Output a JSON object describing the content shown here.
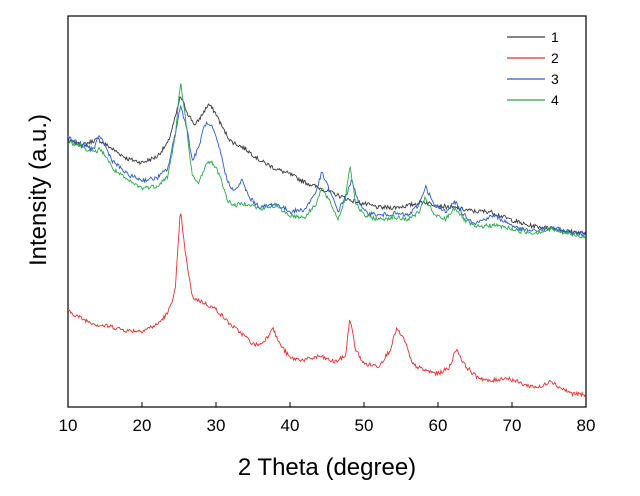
{
  "chart_data": {
    "type": "line",
    "xlabel": "2 Theta (degree)",
    "ylabel": "Intensity (a.u.)",
    "xlim": [
      10,
      80
    ],
    "ylim": [
      0,
      100
    ],
    "x_ticks": [
      10,
      20,
      30,
      40,
      50,
      60,
      70,
      80
    ],
    "y_ticks_shown": false,
    "grid": false,
    "legend_position": "top-right",
    "series": [
      {
        "name": "1",
        "color": "#3a3a3a",
        "points": [
          [
            10,
            68
          ],
          [
            12,
            67
          ],
          [
            14,
            68.5
          ],
          [
            16,
            66
          ],
          [
            18,
            63.5
          ],
          [
            20,
            62.5
          ],
          [
            22,
            64
          ],
          [
            23.5,
            67.5
          ],
          [
            24.5,
            74
          ],
          [
            25.2,
            79.5
          ],
          [
            26.2,
            75
          ],
          [
            27.2,
            72
          ],
          [
            28.2,
            75
          ],
          [
            29,
            77.5
          ],
          [
            30,
            75
          ],
          [
            31,
            71
          ],
          [
            32,
            68
          ],
          [
            34,
            66
          ],
          [
            35,
            64.5
          ],
          [
            36,
            63
          ],
          [
            38,
            61
          ],
          [
            40,
            59.5
          ],
          [
            42,
            57.5
          ],
          [
            44,
            56
          ],
          [
            46,
            54.5
          ],
          [
            48,
            53
          ],
          [
            50,
            52
          ],
          [
            52,
            51
          ],
          [
            54,
            51
          ],
          [
            56,
            51.5
          ],
          [
            58,
            52.5
          ],
          [
            60,
            51.5
          ],
          [
            62,
            51
          ],
          [
            63.5,
            50.5
          ],
          [
            65,
            50
          ],
          [
            67,
            50
          ],
          [
            69,
            48.5
          ],
          [
            72,
            46.5
          ],
          [
            74,
            46
          ],
          [
            76,
            45.5
          ],
          [
            78,
            44.8
          ],
          [
            80,
            44.5
          ]
        ]
      },
      {
        "name": "2",
        "color": "#e8312f",
        "points": [
          [
            10,
            24.5
          ],
          [
            12,
            22.5
          ],
          [
            14,
            21
          ],
          [
            16,
            20.5
          ],
          [
            18,
            19.5
          ],
          [
            20,
            19.5
          ],
          [
            22,
            21
          ],
          [
            23.5,
            24
          ],
          [
            24.5,
            30
          ],
          [
            25.2,
            50.5
          ],
          [
            25.8,
            40
          ],
          [
            26.8,
            28
          ],
          [
            28,
            27
          ],
          [
            30,
            25
          ],
          [
            32,
            21
          ],
          [
            34,
            18
          ],
          [
            35,
            16
          ],
          [
            36,
            16
          ],
          [
            37,
            18
          ],
          [
            37.6,
            20.5
          ],
          [
            38.5,
            16.5
          ],
          [
            40,
            12.5
          ],
          [
            42,
            12
          ],
          [
            44,
            13
          ],
          [
            46,
            11.5
          ],
          [
            47.5,
            13
          ],
          [
            48.1,
            23
          ],
          [
            48.8,
            15
          ],
          [
            50,
            11
          ],
          [
            52,
            10.5
          ],
          [
            53.5,
            14.5
          ],
          [
            54.4,
            20
          ],
          [
            55.5,
            17
          ],
          [
            56.5,
            11
          ],
          [
            58,
            9.5
          ],
          [
            60,
            8.5
          ],
          [
            61.5,
            10
          ],
          [
            62.5,
            15
          ],
          [
            63.5,
            11
          ],
          [
            65,
            8
          ],
          [
            67,
            6.5
          ],
          [
            69,
            7.5
          ],
          [
            70,
            7
          ],
          [
            72,
            5.5
          ],
          [
            74,
            5
          ],
          [
            75.2,
            7
          ],
          [
            76,
            5.5
          ],
          [
            78,
            3.5
          ],
          [
            80,
            3
          ]
        ]
      },
      {
        "name": "3",
        "color": "#2b5ccf",
        "points": [
          [
            10,
            69
          ],
          [
            12,
            67
          ],
          [
            13.5,
            66
          ],
          [
            14.3,
            69.5
          ],
          [
            15.2,
            66
          ],
          [
            16,
            63
          ],
          [
            18,
            59.5
          ],
          [
            20,
            58
          ],
          [
            22,
            58.5
          ],
          [
            23.5,
            61
          ],
          [
            24.5,
            70
          ],
          [
            25.2,
            77
          ],
          [
            26,
            72
          ],
          [
            26.8,
            63
          ],
          [
            27.6,
            66
          ],
          [
            28.5,
            72.5
          ],
          [
            29.5,
            71.5
          ],
          [
            30.5,
            66
          ],
          [
            31.5,
            58
          ],
          [
            32.5,
            55
          ],
          [
            33.5,
            58
          ],
          [
            34.5,
            53.5
          ],
          [
            36,
            51
          ],
          [
            38,
            52
          ],
          [
            40,
            50
          ],
          [
            42,
            50.5
          ],
          [
            43.5,
            55
          ],
          [
            44.3,
            60
          ],
          [
            45.2,
            56
          ],
          [
            46.5,
            50
          ],
          [
            48,
            56
          ],
          [
            48.3,
            58
          ],
          [
            49.2,
            53
          ],
          [
            50,
            50
          ],
          [
            52,
            49
          ],
          [
            54,
            49.5
          ],
          [
            56,
            49
          ],
          [
            57.5,
            52
          ],
          [
            58.3,
            56.5
          ],
          [
            59.5,
            51.5
          ],
          [
            61,
            50
          ],
          [
            62.3,
            52.5
          ],
          [
            63.3,
            49.5
          ],
          [
            65,
            47
          ],
          [
            67.5,
            49
          ],
          [
            69,
            47.5
          ],
          [
            71,
            45.5
          ],
          [
            73,
            45
          ],
          [
            75.5,
            46
          ],
          [
            77,
            45
          ],
          [
            80,
            44
          ]
        ]
      },
      {
        "name": "4",
        "color": "#2fa84f",
        "points": [
          [
            10,
            68
          ],
          [
            12,
            66.5
          ],
          [
            13.5,
            65
          ],
          [
            14.3,
            66
          ],
          [
            15.2,
            64
          ],
          [
            16,
            61
          ],
          [
            18,
            58
          ],
          [
            20,
            56
          ],
          [
            22,
            56.5
          ],
          [
            23.5,
            59
          ],
          [
            24.5,
            69.5
          ],
          [
            25.2,
            83
          ],
          [
            26,
            72
          ],
          [
            26.8,
            59
          ],
          [
            27.6,
            57
          ],
          [
            28.5,
            61.5
          ],
          [
            29.3,
            63
          ],
          [
            30.5,
            59.5
          ],
          [
            31.5,
            53
          ],
          [
            32.5,
            51.5
          ],
          [
            33.5,
            52
          ],
          [
            34.5,
            52
          ],
          [
            36,
            50.5
          ],
          [
            38,
            51.5
          ],
          [
            40,
            49
          ],
          [
            42,
            48.5
          ],
          [
            43.5,
            52
          ],
          [
            44.3,
            56
          ],
          [
            45.5,
            52
          ],
          [
            46.5,
            48
          ],
          [
            47.5,
            53.5
          ],
          [
            48.1,
            62
          ],
          [
            48.9,
            52
          ],
          [
            50,
            49
          ],
          [
            52,
            48
          ],
          [
            54,
            48.5
          ],
          [
            56,
            48
          ],
          [
            57.5,
            50
          ],
          [
            58.3,
            53.5
          ],
          [
            59.5,
            49
          ],
          [
            61,
            48
          ],
          [
            62.3,
            51
          ],
          [
            63.5,
            48
          ],
          [
            65,
            46
          ],
          [
            67.5,
            46.5
          ],
          [
            69,
            46
          ],
          [
            71,
            45
          ],
          [
            73,
            44.5
          ],
          [
            75.5,
            45.5
          ],
          [
            77,
            44.5
          ],
          [
            80,
            43.5
          ]
        ]
      }
    ]
  }
}
